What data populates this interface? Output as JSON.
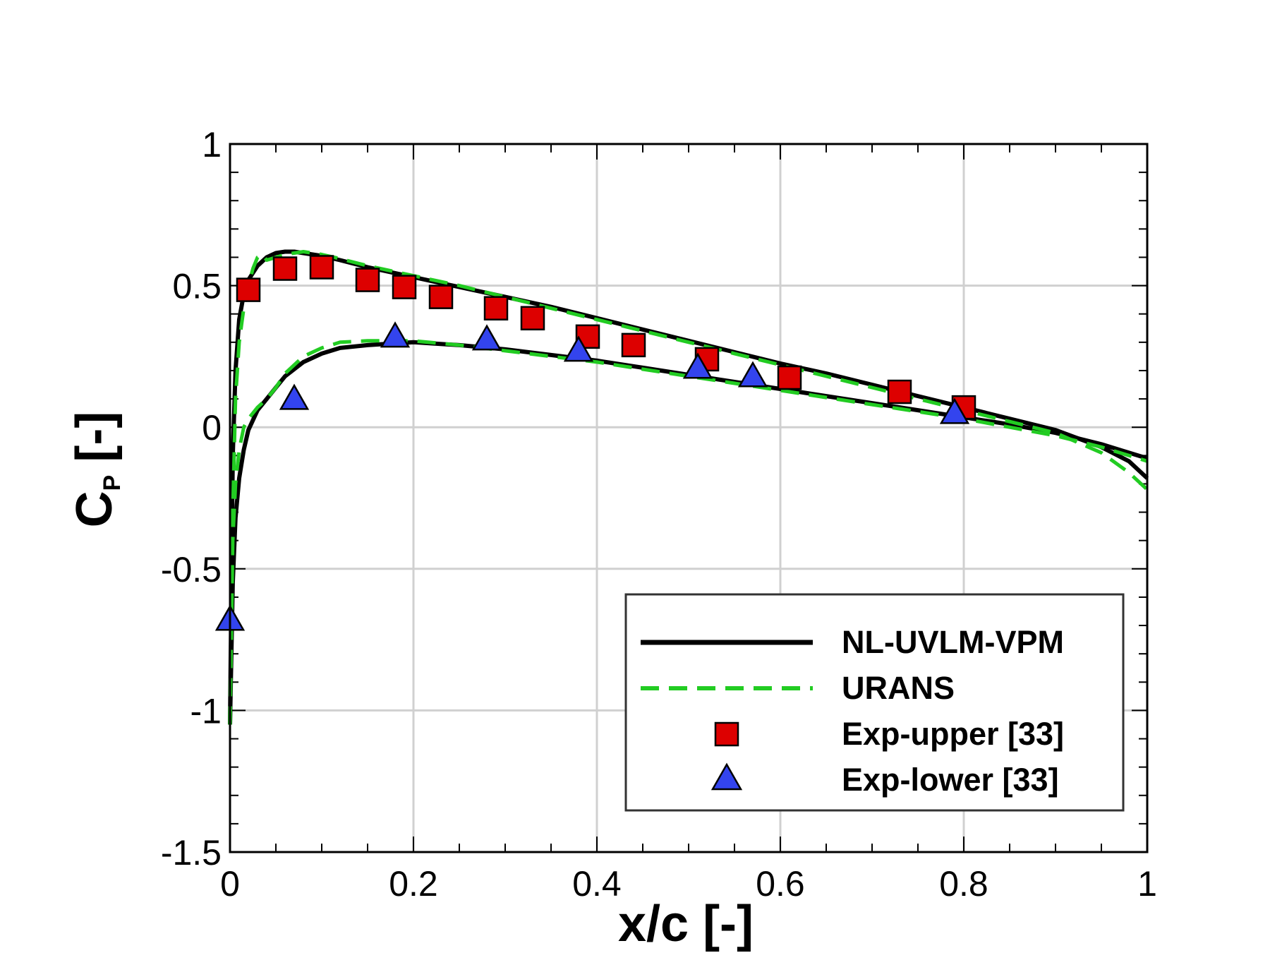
{
  "chart_data": {
    "type": "line",
    "xlabel": "x/c [-]",
    "ylabel": {
      "main": "C",
      "sub": "P",
      "unit": "[-]"
    },
    "xlim": [
      0,
      1
    ],
    "ylim": [
      -1.5,
      1
    ],
    "x_ticks": [
      0,
      0.2,
      0.4,
      0.6,
      0.8,
      1
    ],
    "x_tick_labels": [
      "0",
      "0.2",
      "0.4",
      "0.6",
      "0.8",
      "1"
    ],
    "y_ticks": [
      -1.5,
      -1,
      -0.5,
      0,
      0.5,
      1
    ],
    "y_tick_labels": [
      "-1.5",
      "-1",
      "-0.5",
      "0",
      "0.5",
      "1"
    ],
    "grid": true,
    "legend_position": "bottom-right",
    "series": [
      {
        "name": "NL-UVLM-VPM",
        "style": "solid",
        "color": "#000000",
        "x": [
          0,
          0.003,
          0.006,
          0.01,
          0.015,
          0.02,
          0.03,
          0.04,
          0.05,
          0.06,
          0.07,
          0.08,
          0.1,
          0.12,
          0.15,
          0.2,
          0.25,
          0.3,
          0.35,
          0.4,
          0.45,
          0.5,
          0.55,
          0.6,
          0.65,
          0.7,
          0.75,
          0.8,
          0.85,
          0.9,
          0.95,
          0.98,
          1.0
        ],
        "y": [
          -1.05,
          -0.1,
          0.2,
          0.38,
          0.47,
          0.52,
          0.57,
          0.6,
          0.615,
          0.62,
          0.62,
          0.615,
          0.605,
          0.59,
          0.565,
          0.53,
          0.495,
          0.46,
          0.425,
          0.385,
          0.345,
          0.305,
          0.265,
          0.225,
          0.19,
          0.15,
          0.11,
          0.07,
          0.03,
          -0.01,
          -0.07,
          -0.12,
          -0.18
        ]
      },
      {
        "name": "NL-UVLM-VPM",
        "style": "solid",
        "color": "#000000",
        "x": [
          0,
          0.003,
          0.006,
          0.01,
          0.015,
          0.02,
          0.03,
          0.04,
          0.05,
          0.06,
          0.08,
          0.1,
          0.12,
          0.15,
          0.2,
          0.25,
          0.3,
          0.35,
          0.4,
          0.45,
          0.5,
          0.55,
          0.6,
          0.65,
          0.7,
          0.75,
          0.8,
          0.85,
          0.9,
          0.95,
          1.0
        ],
        "y": [
          -1.05,
          -0.55,
          -0.32,
          -0.18,
          -0.08,
          -0.01,
          0.06,
          0.1,
          0.14,
          0.18,
          0.23,
          0.26,
          0.28,
          0.29,
          0.3,
          0.29,
          0.275,
          0.255,
          0.235,
          0.21,
          0.185,
          0.16,
          0.135,
          0.11,
          0.085,
          0.06,
          0.035,
          0.01,
          -0.02,
          -0.06,
          -0.11
        ]
      },
      {
        "name": "URANS",
        "style": "dashed",
        "color": "#22cc22",
        "x": [
          0,
          0.003,
          0.006,
          0.01,
          0.015,
          0.02,
          0.025,
          0.03,
          0.035,
          0.04,
          0.05,
          0.06,
          0.07,
          0.08,
          0.09,
          0.1,
          0.12,
          0.15,
          0.2,
          0.25,
          0.3,
          0.35,
          0.4,
          0.45,
          0.5,
          0.55,
          0.6,
          0.65,
          0.7,
          0.75,
          0.8,
          0.85,
          0.9,
          0.95,
          0.98,
          1.0
        ],
        "y": [
          -1.05,
          -0.3,
          0.1,
          0.3,
          0.42,
          0.5,
          0.56,
          0.6,
          0.61,
          0.59,
          0.6,
          0.61,
          0.615,
          0.62,
          0.615,
          0.61,
          0.595,
          0.57,
          0.535,
          0.5,
          0.46,
          0.42,
          0.38,
          0.34,
          0.3,
          0.26,
          0.22,
          0.18,
          0.14,
          0.1,
          0.06,
          0.02,
          -0.02,
          -0.09,
          -0.16,
          -0.22
        ]
      },
      {
        "name": "URANS",
        "style": "dashed",
        "color": "#22cc22",
        "x": [
          0,
          0.003,
          0.006,
          0.01,
          0.015,
          0.02,
          0.03,
          0.04,
          0.05,
          0.06,
          0.08,
          0.1,
          0.12,
          0.15,
          0.2,
          0.25,
          0.3,
          0.35,
          0.4,
          0.45,
          0.5,
          0.55,
          0.6,
          0.65,
          0.7,
          0.75,
          0.8,
          0.85,
          0.9,
          0.95,
          1.0
        ],
        "y": [
          -1.05,
          -0.4,
          -0.2,
          -0.08,
          0.0,
          0.03,
          0.07,
          0.1,
          0.14,
          0.19,
          0.25,
          0.28,
          0.3,
          0.305,
          0.305,
          0.29,
          0.27,
          0.25,
          0.23,
          0.205,
          0.18,
          0.155,
          0.13,
          0.105,
          0.08,
          0.055,
          0.03,
          0.0,
          -0.03,
          -0.07,
          -0.12
        ]
      },
      {
        "name": "Exp-upper [33]",
        "style": "markers",
        "marker": "square",
        "color": "#dd0000",
        "x": [
          0.02,
          0.06,
          0.1,
          0.15,
          0.19,
          0.23,
          0.29,
          0.33,
          0.39,
          0.44,
          0.52,
          0.61,
          0.73,
          0.8
        ],
        "y": [
          0.485,
          0.56,
          0.565,
          0.52,
          0.495,
          0.46,
          0.42,
          0.385,
          0.32,
          0.29,
          0.24,
          0.175,
          0.125,
          0.07
        ]
      },
      {
        "name": "Exp-lower [33]",
        "style": "markers",
        "marker": "triangle",
        "color": "#3344ee",
        "x": [
          0.0,
          0.07,
          0.18,
          0.28,
          0.38,
          0.51,
          0.57,
          0.79
        ],
        "y": [
          -0.68,
          0.1,
          0.32,
          0.31,
          0.27,
          0.21,
          0.18,
          0.05
        ]
      }
    ],
    "legend": [
      {
        "label": "NL-UVLM-VPM",
        "style": "solid",
        "color": "#000000"
      },
      {
        "label": "URANS",
        "style": "dashed",
        "color": "#22cc22"
      },
      {
        "label": "Exp-upper [33]",
        "style": "square",
        "color": "#dd0000"
      },
      {
        "label": "Exp-lower [33]",
        "style": "triangle",
        "color": "#3344ee"
      }
    ]
  }
}
